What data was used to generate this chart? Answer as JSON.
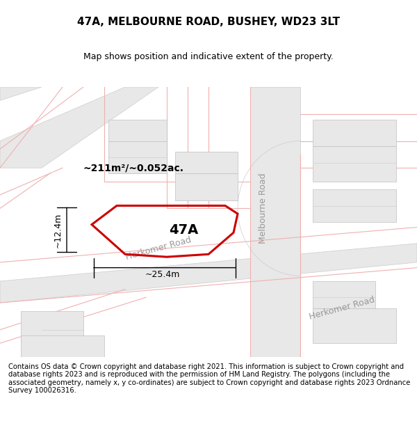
{
  "title_line1": "47A, MELBOURNE ROAD, BUSHEY, WD23 3LT",
  "title_line2": "Map shows position and indicative extent of the property.",
  "footer_text": "Contains OS data © Crown copyright and database right 2021. This information is subject to Crown copyright and database rights 2023 and is reproduced with the permission of HM Land Registry. The polygons (including the associated geometry, namely x, y co-ordinates) are subject to Crown copyright and database rights 2023 Ordnance Survey 100026316.",
  "bg_color": "#f5f5f5",
  "map_bg": "#f0f0f0",
  "title_fontsize": 11,
  "subtitle_fontsize": 9,
  "footer_fontsize": 7.5,
  "road_color_light": "#f0b0b0",
  "road_color_dark": "#c8c8c8",
  "building_fill": "#e8e8e8",
  "building_stroke": "#c0c0c0",
  "property_color": "#cc0000",
  "property_label": "47A",
  "area_label": "~211m²/~0.052ac.",
  "dim_label_h": "~12.4m",
  "dim_label_w": "~25.4m",
  "road_label_melbourne": "Melbourne Road",
  "road_label_herkomer1": "Herkomer Road",
  "road_label_herkomer2": "Herkomer Road",
  "xlim": [
    0,
    1
  ],
  "ylim": [
    0,
    1
  ],
  "map_area": [
    0.0,
    0.08,
    1.0,
    0.78
  ]
}
